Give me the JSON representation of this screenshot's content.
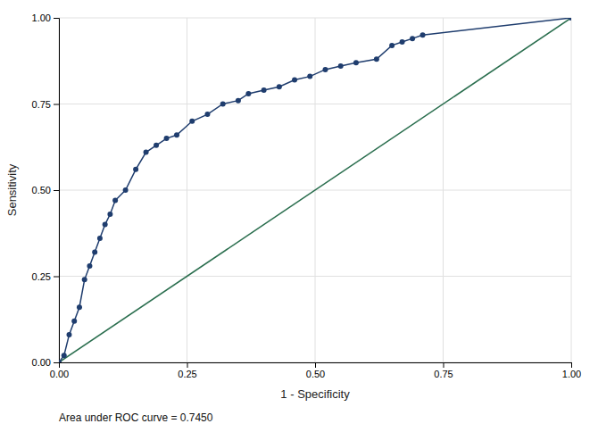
{
  "chart_data": {
    "type": "line",
    "xlabel": "1 - Specificity",
    "ylabel": "Sensitivity",
    "annotation": "Area under ROC curve = 0.7450",
    "xlim": [
      0.0,
      1.0
    ],
    "ylim": [
      0.0,
      1.0
    ],
    "xticks": [
      {
        "value": 0.0,
        "label": "0.00"
      },
      {
        "value": 0.25,
        "label": "0.25"
      },
      {
        "value": 0.5,
        "label": "0.50"
      },
      {
        "value": 0.75,
        "label": "0.75"
      },
      {
        "value": 1.0,
        "label": "1.00"
      }
    ],
    "yticks": [
      {
        "value": 0.0,
        "label": "0.00"
      },
      {
        "value": 0.25,
        "label": "0.25"
      },
      {
        "value": 0.5,
        "label": "0.50"
      },
      {
        "value": 0.75,
        "label": "0.75"
      },
      {
        "value": 1.0,
        "label": "1.00"
      }
    ],
    "grid": true,
    "series": [
      {
        "color": "#2a6e4e",
        "x": [
          0.0,
          1.0
        ],
        "values": [
          0.0,
          1.0
        ]
      },
      {
        "color": "#1f3d6e",
        "marker": "circle",
        "x": [
          0.0,
          0.01,
          0.02,
          0.03,
          0.04,
          0.05,
          0.06,
          0.07,
          0.08,
          0.09,
          0.1,
          0.11,
          0.13,
          0.15,
          0.17,
          0.19,
          0.21,
          0.23,
          0.26,
          0.29,
          0.32,
          0.35,
          0.37,
          0.4,
          0.43,
          0.46,
          0.49,
          0.52,
          0.55,
          0.58,
          0.62,
          0.65,
          0.67,
          0.69,
          0.71,
          1.0
        ],
        "values": [
          0.0,
          0.02,
          0.08,
          0.12,
          0.16,
          0.24,
          0.28,
          0.32,
          0.36,
          0.4,
          0.43,
          0.47,
          0.5,
          0.56,
          0.61,
          0.63,
          0.65,
          0.66,
          0.7,
          0.72,
          0.75,
          0.76,
          0.78,
          0.79,
          0.8,
          0.82,
          0.83,
          0.85,
          0.86,
          0.87,
          0.88,
          0.92,
          0.93,
          0.94,
          0.95,
          1.0
        ]
      }
    ]
  }
}
